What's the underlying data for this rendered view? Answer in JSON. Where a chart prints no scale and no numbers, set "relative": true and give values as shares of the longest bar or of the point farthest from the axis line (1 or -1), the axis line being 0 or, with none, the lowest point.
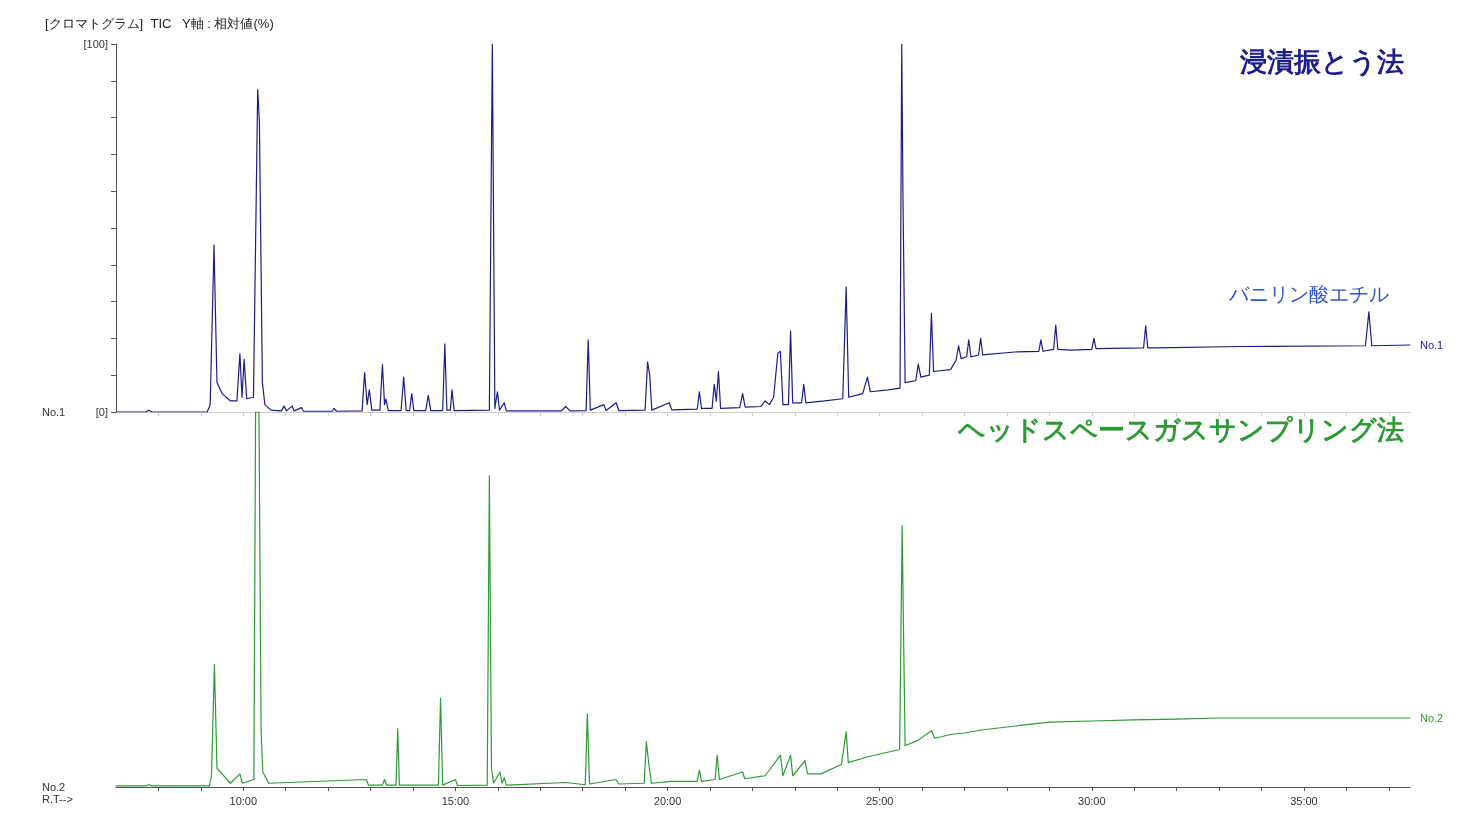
{
  "chart_data": [
    {
      "type": "line",
      "title": "[クロマトグラム]  TIC   Y軸 : 相対値(%)",
      "xlim": [
        7,
        37.5
      ],
      "xticks": [
        {
          "value": 8,
          "label": null
        },
        {
          "value": 9,
          "label": null
        },
        {
          "value": 10,
          "label": null
        },
        {
          "value": 11,
          "label": null
        },
        {
          "value": 12,
          "label": null
        },
        {
          "value": 13,
          "label": null
        },
        {
          "value": 14,
          "label": null
        },
        {
          "value": 15,
          "label": null
        },
        {
          "value": 16,
          "label": null
        },
        {
          "value": 17,
          "label": null
        },
        {
          "value": 18,
          "label": null
        },
        {
          "value": 19,
          "label": null
        },
        {
          "value": 20,
          "label": null
        },
        {
          "value": 21,
          "label": null
        },
        {
          "value": 22,
          "label": null
        },
        {
          "value": 23,
          "label": null
        },
        {
          "value": 24,
          "label": null
        },
        {
          "value": 25,
          "label": null
        },
        {
          "value": 26,
          "label": null
        },
        {
          "value": 27,
          "label": null
        },
        {
          "value": 28,
          "label": null
        },
        {
          "value": 29,
          "label": null
        },
        {
          "value": 30,
          "label": null
        },
        {
          "value": 31,
          "label": null
        },
        {
          "value": 32,
          "label": null
        },
        {
          "value": 33,
          "label": null
        },
        {
          "value": 34,
          "label": null
        },
        {
          "value": 35,
          "label": null
        },
        {
          "value": 36,
          "label": null
        },
        {
          "value": 37,
          "label": null
        }
      ],
      "ylim": [
        0,
        100
      ],
      "yticks": [
        {
          "value": 0,
          "label": "[0]"
        },
        {
          "value": 10,
          "label": null
        },
        {
          "value": 20,
          "label": null
        },
        {
          "value": 30,
          "label": null
        },
        {
          "value": 40,
          "label": null
        },
        {
          "value": 50,
          "label": null
        },
        {
          "value": 60,
          "label": null
        },
        {
          "value": 70,
          "label": null
        },
        {
          "value": 80,
          "label": null
        },
        {
          "value": 90,
          "label": null
        },
        {
          "value": 100,
          "label": "[100]"
        }
      ],
      "tick_labels": "y",
      "annotations": [
        "No.1",
        "No.1",
        {
          "text": "バニリン酸エチル",
          "x": 36.53,
          "y": 27.2
        }
      ],
      "series": [
        {
          "name": "浸漬振とう法",
          "color": "#1c1c8a",
          "x": [
            7.0,
            7.7,
            7.77,
            7.85,
            9.15,
            9.22,
            9.31,
            9.38,
            9.5,
            9.7,
            9.85,
            9.92,
            9.97,
            10.02,
            10.08,
            10.24,
            10.34,
            10.38,
            10.45,
            10.51,
            10.65,
            10.9,
            10.96,
            11.02,
            11.15,
            11.2,
            11.37,
            11.42,
            12.1,
            12.14,
            12.2,
            12.8,
            12.86,
            12.92,
            12.97,
            13.03,
            13.22,
            13.28,
            13.33,
            13.36,
            13.42,
            13.72,
            13.78,
            13.84,
            13.92,
            13.97,
            14.02,
            14.3,
            14.36,
            14.42,
            14.7,
            14.75,
            14.8,
            14.88,
            14.92,
            14.97,
            15.8,
            15.87,
            15.93,
            15.99,
            16.04,
            16.15,
            16.2,
            17.5,
            17.6,
            17.7,
            18.08,
            18.13,
            18.18,
            18.5,
            18.55,
            18.79,
            18.85,
            19.47,
            19.53,
            19.58,
            19.63,
            20.04,
            20.1,
            20.7,
            20.75,
            20.8,
            21.05,
            21.1,
            21.15,
            21.2,
            21.25,
            21.7,
            21.77,
            21.83,
            22.2,
            22.3,
            22.4,
            22.5,
            22.6,
            22.66,
            22.72,
            22.85,
            22.9,
            22.95,
            23.16,
            23.21,
            23.26,
            23.7,
            24.13,
            24.21,
            24.27,
            24.6,
            24.71,
            24.78,
            25.2,
            25.48,
            25.52,
            25.55,
            25.6,
            25.85,
            25.91,
            25.97,
            26.17,
            26.22,
            26.27,
            26.67,
            26.8,
            26.86,
            26.92,
            27.05,
            27.1,
            27.15,
            27.33,
            27.38,
            27.43,
            28.18,
            28.75,
            28.8,
            28.85,
            29.1,
            29.15,
            29.2,
            29.5,
            30.0,
            30.05,
            30.1,
            31.22,
            31.27,
            31.32,
            31.5,
            33.5,
            36.45,
            36.53,
            36.6,
            37.5
          ],
          "values": [
            0,
            0,
            0.5,
            0,
            0,
            2,
            45.4,
            8,
            5,
            3,
            3,
            15.8,
            4,
            14.3,
            3.6,
            4,
            87.6,
            78.8,
            8,
            2,
            0.5,
            0.3,
            1.6,
            0.3,
            1.6,
            0.3,
            1.2,
            0.2,
            0.2,
            1,
            0.2,
            0.3,
            10.7,
            2,
            6,
            0.5,
            0.5,
            12.9,
            2,
            3.5,
            0.4,
            0.4,
            9.5,
            0.4,
            0.4,
            5,
            0.4,
            0.4,
            4.5,
            0.4,
            0.4,
            18.5,
            0.5,
            0.5,
            6,
            0.4,
            0.5,
            100,
            1,
            5.5,
            0.5,
            2.5,
            0.3,
            0.3,
            1.5,
            0.3,
            0.4,
            19.6,
            0.5,
            2,
            0.4,
            2.5,
            0.4,
            0.5,
            13.6,
            10,
            0.5,
            2.5,
            0.6,
            0.8,
            5.5,
            1,
            1,
            7.5,
            3,
            11,
            1,
            1.2,
            5,
            1.3,
            1.5,
            3,
            2,
            4,
            16,
            16.5,
            2,
            2,
            22,
            2.5,
            2.5,
            7.5,
            2.5,
            3,
            3.6,
            34,
            4,
            5,
            9.5,
            5.5,
            6,
            6.5,
            100,
            57.6,
            8,
            8.5,
            13,
            9.5,
            10,
            26.8,
            11,
            11.5,
            14,
            18,
            14.5,
            15,
            19.6,
            15,
            15.5,
            20,
            15.5,
            16.3,
            16.5,
            19.6,
            16.5,
            17,
            23.6,
            17,
            16.8,
            17,
            20,
            17.2,
            17.4,
            23.4,
            17.4,
            17.4,
            17.8,
            18,
            27.2,
            18,
            18.2
          ]
        }
      ]
    },
    {
      "type": "line",
      "relative": true,
      "xlim": [
        7,
        37.5
      ],
      "xticks": [
        {
          "value": 8,
          "label": null
        },
        {
          "value": 9,
          "label": null
        },
        {
          "value": 10,
          "label": "10:00"
        },
        {
          "value": 11,
          "label": null
        },
        {
          "value": 12,
          "label": null
        },
        {
          "value": 13,
          "label": null
        },
        {
          "value": 14,
          "label": null
        },
        {
          "value": 15,
          "label": "15:00"
        },
        {
          "value": 16,
          "label": null
        },
        {
          "value": 17,
          "label": null
        },
        {
          "value": 18,
          "label": null
        },
        {
          "value": 19,
          "label": null
        },
        {
          "value": 20,
          "label": "20:00"
        },
        {
          "value": 21,
          "label": null
        },
        {
          "value": 22,
          "label": null
        },
        {
          "value": 23,
          "label": null
        },
        {
          "value": 24,
          "label": null
        },
        {
          "value": 25,
          "label": "25:00"
        },
        {
          "value": 26,
          "label": null
        },
        {
          "value": 27,
          "label": null
        },
        {
          "value": 28,
          "label": null
        },
        {
          "value": 29,
          "label": null
        },
        {
          "value": 30,
          "label": "30:00"
        },
        {
          "value": 31,
          "label": null
        },
        {
          "value": 32,
          "label": null
        },
        {
          "value": 33,
          "label": null
        },
        {
          "value": 34,
          "label": null
        },
        {
          "value": 35,
          "label": "35:00"
        },
        {
          "value": 36,
          "label": null
        },
        {
          "value": 37,
          "label": null
        }
      ],
      "tick_labels": "x",
      "xlabel": "R.T-->",
      "annotations": [
        "No.2",
        "No.2"
      ],
      "series": [
        {
          "name": "ヘッドスペースガスサンプリング法",
          "color": "#2e9a35",
          "x": [
            7.0,
            7.7,
            7.77,
            7.85,
            9.2,
            9.25,
            9.32,
            9.38,
            9.5,
            9.7,
            9.92,
            9.98,
            10.25,
            10.29,
            10.37,
            10.42,
            10.46,
            10.6,
            12.9,
            12.95,
            13.28,
            13.33,
            13.38,
            13.6,
            13.64,
            13.68,
            14.6,
            14.65,
            14.7,
            15.0,
            15.05,
            15.75,
            15.8,
            15.85,
            15.9,
            16.05,
            16.1,
            16.15,
            16.2,
            17.6,
            18.06,
            18.11,
            18.16,
            18.79,
            18.85,
            19.45,
            19.5,
            19.56,
            19.62,
            20.1,
            20.7,
            20.75,
            20.8,
            21.12,
            21.17,
            21.22,
            21.77,
            21.82,
            22.3,
            22.5,
            22.66,
            22.72,
            22.9,
            22.95,
            23.24,
            23.3,
            23.61,
            24.1,
            24.21,
            24.26,
            24.7,
            25.47,
            25.53,
            25.56,
            25.6,
            25.91,
            26.22,
            26.3,
            26.67,
            27.0,
            27.4,
            28.0,
            29.0,
            30.0,
            31.0,
            32.0,
            33.0,
            37.5
          ],
          "values": [
            0.003,
            0.003,
            0.006,
            0.003,
            0.003,
            0.03,
            0.327,
            0.05,
            0.035,
            0.01,
            0.035,
            0.01,
            0.02,
            1,
            1,
            0.15,
            0.04,
            0.01,
            0.02,
            0.005,
            0.005,
            0.02,
            0.005,
            0.005,
            0.155,
            0.005,
            0.005,
            0.237,
            0.005,
            0.02,
            0.004,
            0.005,
            0.83,
            0.05,
            0.01,
            0.04,
            0.01,
            0.025,
            0.005,
            0.012,
            0.006,
            0.195,
            0.008,
            0.02,
            0.008,
            0.01,
            0.121,
            0.06,
            0.01,
            0.015,
            0.015,
            0.045,
            0.015,
            0.02,
            0.085,
            0.02,
            0.04,
            0.022,
            0.03,
            0.06,
            0.085,
            0.03,
            0.085,
            0.03,
            0.07,
            0.035,
            0.035,
            0.06,
            0.147,
            0.065,
            0.08,
            0.1,
            0.697,
            0.43,
            0.11,
            0.125,
            0.15,
            0.13,
            0.14,
            0.144,
            0.152,
            0.16,
            0.173,
            0.176,
            0.179,
            0.181,
            0.184,
            0.184
          ]
        }
      ]
    }
  ]
}
